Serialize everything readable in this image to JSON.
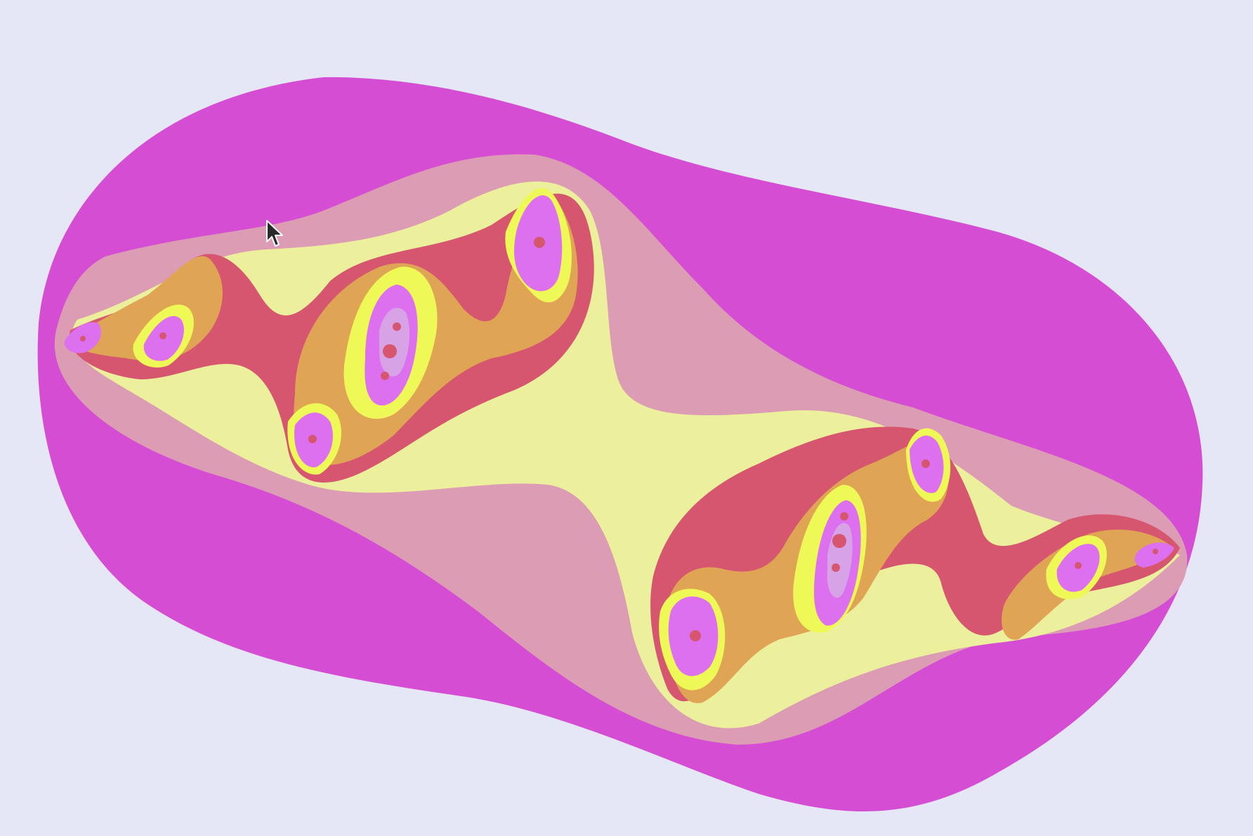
{
  "viewer": {
    "background_color": "#e5e6f6"
  },
  "fractal": {
    "palette": {
      "outer_band": "#d44dd2",
      "band_2": "#dc9cb3",
      "band_3": "#ecef9c",
      "band_4": "#d65670",
      "band_5": "#dfa555",
      "band_6": "#eef856",
      "band_7": "#dc70ee",
      "band_8": "#d7a2e6"
    }
  },
  "cursor": {
    "icon": "arrow-pointer-icon"
  }
}
